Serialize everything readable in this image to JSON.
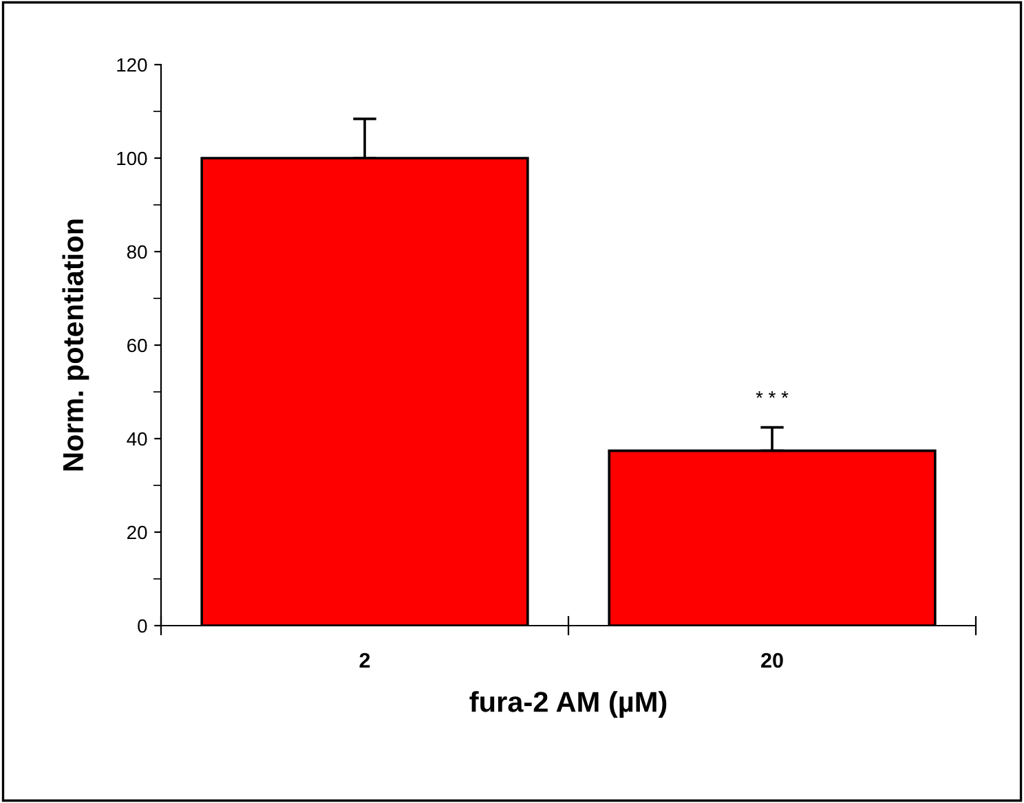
{
  "chart_data": {
    "type": "bar",
    "xlabel": "fura-2 AM (µM)",
    "ylabel": "Norm. potentiation",
    "categories": [
      "2",
      "20"
    ],
    "values": [
      100,
      37.4
    ],
    "errors": [
      [
        100,
        108.4
      ],
      [
        37.4,
        42.4
      ]
    ],
    "colors": [
      "#ff0000",
      "#ff0000"
    ],
    "ylim": [
      0,
      120
    ],
    "yticks": [
      0,
      20,
      40,
      60,
      80,
      100,
      120
    ],
    "annotations": [
      "* * *"
    ],
    "grid": false,
    "legend": false
  }
}
